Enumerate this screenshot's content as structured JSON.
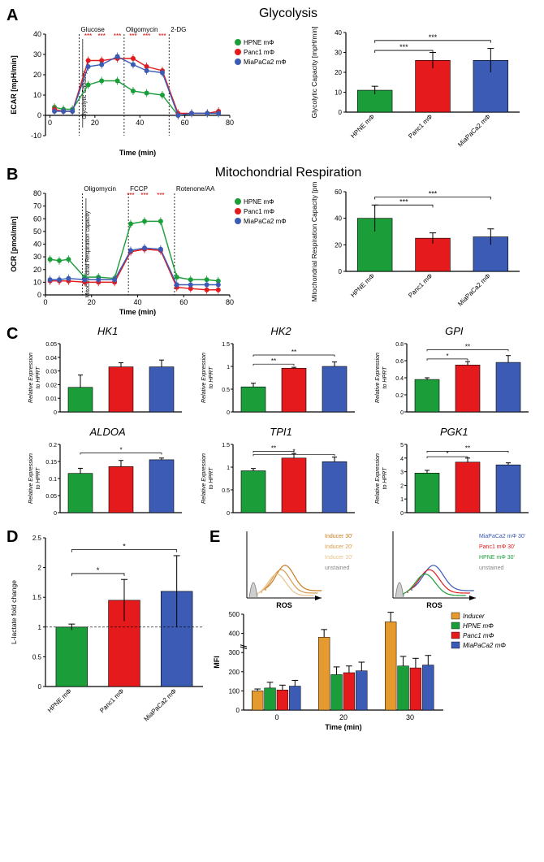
{
  "panel_a": {
    "label": "A",
    "title": "Glycolysis",
    "line_chart": {
      "ylabel": "ECAR [mpH/min]",
      "xlabel": "Time (min)",
      "xlim": [
        -2,
        80
      ],
      "ylim": [
        -10,
        40
      ],
      "yticks": [
        -10,
        0,
        10,
        20,
        30,
        40
      ],
      "xticks": [
        0,
        20,
        40,
        60,
        80
      ],
      "injections": [
        {
          "x": 13,
          "label": "Glucose"
        },
        {
          "x": 33,
          "label": "Oligomycin"
        },
        {
          "x": 53,
          "label": "2-DG"
        }
      ],
      "capacity_label": "Glycolytic Capacity",
      "series": [
        {
          "name": "HPNE mΦ",
          "color": "#1b9e3a",
          "x": [
            2,
            6,
            10,
            17,
            23,
            30,
            37,
            43,
            50,
            57,
            63,
            70,
            75
          ],
          "y": [
            4,
            3,
            3,
            15,
            17,
            17,
            12,
            11,
            10,
            0,
            1,
            1,
            1
          ]
        },
        {
          "name": "Panc1 mΦ",
          "color": "#e41a1c",
          "x": [
            2,
            6,
            10,
            17,
            23,
            30,
            37,
            43,
            50,
            57,
            63,
            70,
            75
          ],
          "y": [
            3,
            2,
            2,
            27,
            27,
            28,
            28,
            24,
            22,
            1,
            1,
            1,
            2
          ]
        },
        {
          "name": "MiaPaCa2 mΦ",
          "color": "#3b5bb5",
          "x": [
            2,
            6,
            10,
            17,
            23,
            30,
            37,
            43,
            50,
            57,
            63,
            70,
            75
          ],
          "y": [
            2,
            2,
            2,
            24,
            25,
            29,
            25,
            22,
            21,
            0,
            1,
            1,
            1
          ]
        }
      ],
      "sig_marks": [
        {
          "x": 17,
          "label": "***"
        },
        {
          "x": 23,
          "label": "***"
        },
        {
          "x": 30,
          "label": "***"
        },
        {
          "x": 37,
          "label": "***"
        },
        {
          "x": 43,
          "label": "***"
        },
        {
          "x": 50,
          "label": "***"
        }
      ],
      "background": "#ffffff",
      "axis_fontsize": 9
    },
    "bar_chart": {
      "ylabel": "Glycolytic Capacity [mpH/min]",
      "categories": [
        "HPNE mΦ",
        "Panc1 mΦ",
        "MiaPaCa2 mΦ"
      ],
      "values": [
        11,
        26,
        26
      ],
      "errors": [
        2,
        4,
        6
      ],
      "colors": [
        "#1b9e3a",
        "#e41a1c",
        "#3b5bb5"
      ],
      "ylim": [
        0,
        40
      ],
      "yticks": [
        0,
        10,
        20,
        30,
        40
      ],
      "sig": [
        {
          "from": 0,
          "to": 1,
          "label": "***",
          "y": 31
        },
        {
          "from": 0,
          "to": 2,
          "label": "***",
          "y": 36
        }
      ]
    }
  },
  "panel_b": {
    "label": "B",
    "title": "Mitochondrial Respiration",
    "line_chart": {
      "ylabel": "OCR [pmol/min]",
      "xlabel": "Time (min)",
      "xlim": [
        0,
        80
      ],
      "ylim": [
        0,
        80
      ],
      "yticks": [
        0,
        10,
        20,
        30,
        40,
        50,
        60,
        70,
        80
      ],
      "xticks": [
        0,
        20,
        40,
        60,
        80
      ],
      "injections": [
        {
          "x": 16,
          "label": "Oligomycin"
        },
        {
          "x": 36,
          "label": "FCCP"
        },
        {
          "x": 56,
          "label": "Rotenone/AA"
        }
      ],
      "capacity_label": "Mitochondrial Respiration capacity",
      "series": [
        {
          "name": "HPNE mΦ",
          "color": "#1b9e3a",
          "x": [
            2,
            6,
            10,
            17,
            23,
            30,
            37,
            43,
            50,
            57,
            63,
            70,
            75
          ],
          "y": [
            28,
            27,
            28,
            14,
            14,
            13,
            56,
            58,
            58,
            14,
            12,
            12,
            11
          ]
        },
        {
          "name": "Panc1 mΦ",
          "color": "#e41a1c",
          "x": [
            2,
            6,
            10,
            17,
            23,
            30,
            37,
            43,
            50,
            57,
            63,
            70,
            75
          ],
          "y": [
            11,
            11,
            11,
            10,
            10,
            10,
            34,
            36,
            35,
            6,
            5,
            4,
            4
          ]
        },
        {
          "name": "MiaPaCa2 mΦ",
          "color": "#3b5bb5",
          "x": [
            2,
            6,
            10,
            17,
            23,
            30,
            37,
            43,
            50,
            57,
            63,
            70,
            75
          ],
          "y": [
            12,
            12,
            13,
            12,
            12,
            12,
            35,
            37,
            36,
            8,
            8,
            8,
            8
          ]
        }
      ],
      "sig_marks": [
        {
          "x": 37,
          "label": "***"
        },
        {
          "x": 43,
          "label": "***"
        },
        {
          "x": 50,
          "label": "***"
        }
      ]
    },
    "bar_chart": {
      "ylabel": "Mitochondrial Respiration Capacity [pmol/min]",
      "categories": [
        "HPNE mΦ",
        "Panc1 mΦ",
        "MiaPaCa2 mΦ"
      ],
      "values": [
        40,
        25,
        26
      ],
      "errors": [
        10,
        4,
        6
      ],
      "colors": [
        "#1b9e3a",
        "#e41a1c",
        "#3b5bb5"
      ],
      "ylim": [
        0,
        60
      ],
      "yticks": [
        0,
        20,
        40,
        60
      ],
      "sig": [
        {
          "from": 0,
          "to": 1,
          "label": "***",
          "y": 50
        },
        {
          "from": 0,
          "to": 2,
          "label": "***",
          "y": 56
        }
      ]
    }
  },
  "panel_c": {
    "label": "C",
    "charts": [
      {
        "title": "HK1",
        "ylim": [
          0,
          0.05
        ],
        "yticks": [
          0,
          0.01,
          0.02,
          0.03,
          0.04,
          0.05
        ],
        "values": [
          0.018,
          0.033,
          0.033
        ],
        "errors": [
          0.009,
          0.003,
          0.005
        ],
        "sig": []
      },
      {
        "title": "HK2",
        "ylim": [
          0,
          1.5
        ],
        "yticks": [
          0,
          0.5,
          1.0,
          1.5
        ],
        "values": [
          0.55,
          0.96,
          1.0
        ],
        "errors": [
          0.08,
          0.02,
          0.1
        ],
        "sig": [
          {
            "from": 0,
            "to": 1,
            "label": "**",
            "y": 1.05
          },
          {
            "from": 0,
            "to": 2,
            "label": "**",
            "y": 1.25
          }
        ]
      },
      {
        "title": "GPI",
        "ylim": [
          0,
          0.8
        ],
        "yticks": [
          0,
          0.2,
          0.4,
          0.6,
          0.8
        ],
        "values": [
          0.38,
          0.55,
          0.58
        ],
        "errors": [
          0.02,
          0.04,
          0.08
        ],
        "sig": [
          {
            "from": 0,
            "to": 1,
            "label": "*",
            "y": 0.62
          },
          {
            "from": 0,
            "to": 2,
            "label": "**",
            "y": 0.73
          }
        ]
      },
      {
        "title": "ALDOA",
        "ylim": [
          0,
          0.2
        ],
        "yticks": [
          0,
          0.05,
          0.1,
          0.15,
          0.2
        ],
        "values": [
          0.115,
          0.135,
          0.155
        ],
        "errors": [
          0.015,
          0.018,
          0.005
        ],
        "sig": [
          {
            "from": 0,
            "to": 2,
            "label": "*",
            "y": 0.175
          }
        ]
      },
      {
        "title": "TPI1",
        "ylim": [
          0,
          1.5
        ],
        "yticks": [
          0,
          0.5,
          1.0,
          1.5
        ],
        "values": [
          0.92,
          1.2,
          1.12
        ],
        "errors": [
          0.05,
          0.1,
          0.1
        ],
        "sig": [
          {
            "from": 0,
            "to": 1,
            "label": "**",
            "y": 1.35
          },
          {
            "from": 0,
            "to": 2,
            "label": "*",
            "y": 1.28
          }
        ]
      },
      {
        "title": "PGK1",
        "ylim": [
          0,
          5
        ],
        "yticks": [
          0,
          1,
          2,
          3,
          4,
          5
        ],
        "values": [
          2.9,
          3.7,
          3.5
        ],
        "errors": [
          0.2,
          0.3,
          0.15
        ],
        "sig": [
          {
            "from": 0,
            "to": 1,
            "label": "*",
            "y": 4.1
          },
          {
            "from": 0,
            "to": 2,
            "label": "**",
            "y": 4.5
          }
        ]
      }
    ],
    "colors": [
      "#1b9e3a",
      "#e41a1c",
      "#3b5bb5"
    ],
    "ylabel": "Relative Expression to HPRT"
  },
  "panel_d": {
    "label": "D",
    "ylabel": "L-lactate fold change",
    "categories": [
      "HPNE mΦ",
      "Panc1 mΦ",
      "MiaPaCa2 mΦ"
    ],
    "values": [
      1.0,
      1.45,
      1.6
    ],
    "errors": [
      0.05,
      0.35,
      0.6
    ],
    "colors": [
      "#1b9e3a",
      "#e41a1c",
      "#3b5bb5"
    ],
    "ylim": [
      0,
      2.5
    ],
    "yticks": [
      0,
      0.5,
      1.0,
      1.5,
      2.0,
      2.5
    ],
    "ref_line": 1.0,
    "sig": [
      {
        "from": 0,
        "to": 1,
        "label": "*",
        "y": 1.9
      },
      {
        "from": 0,
        "to": 2,
        "label": "*",
        "y": 2.3
      }
    ]
  },
  "panel_e": {
    "label": "E",
    "histo1": {
      "xlabel": "ROS",
      "curves": [
        {
          "label": "Inducer 30'",
          "color": "#c97a1f",
          "offset": 60
        },
        {
          "label": "Inducer 20'",
          "color": "#d99b4a",
          "offset": 40
        },
        {
          "label": "Inducer 10'",
          "color": "#e6c38c",
          "offset": 20
        },
        {
          "label": "unstained",
          "color": "#888888",
          "offset": 0
        }
      ]
    },
    "histo2": {
      "xlabel": "ROS",
      "curves": [
        {
          "label": "MiaPaCa2 mΦ 30'",
          "color": "#3b5bb5",
          "offset": 60
        },
        {
          "label": "Panc1 mΦ 30'",
          "color": "#e41a1c",
          "offset": 40
        },
        {
          "label": "HPNE mΦ 30'",
          "color": "#1b9e3a",
          "offset": 20
        },
        {
          "label": "unstained",
          "color": "#888888",
          "offset": 0
        }
      ]
    },
    "bar_chart": {
      "ylabel": "MFI",
      "xlabel": "Time (min)",
      "categories": [
        "0",
        "20",
        "30"
      ],
      "groups": [
        {
          "name": "Inducer",
          "color": "#e49a2e",
          "values": [
            100,
            380,
            460
          ],
          "errors": [
            10,
            40,
            50
          ]
        },
        {
          "name": "HPNE mΦ",
          "color": "#1b9e3a",
          "values": [
            115,
            185,
            230
          ],
          "errors": [
            30,
            40,
            50
          ]
        },
        {
          "name": "Panc1 mΦ",
          "color": "#e41a1c",
          "values": [
            105,
            195,
            220
          ],
          "errors": [
            25,
            35,
            50
          ]
        },
        {
          "name": "MiaPaCa2 mΦ",
          "color": "#3b5bb5",
          "values": [
            125,
            205,
            235
          ],
          "errors": [
            30,
            45,
            50
          ]
        }
      ],
      "ylim": [
        0,
        500
      ],
      "yticks": [
        0,
        100,
        200,
        300,
        400,
        500
      ],
      "axis_break": true
    }
  }
}
